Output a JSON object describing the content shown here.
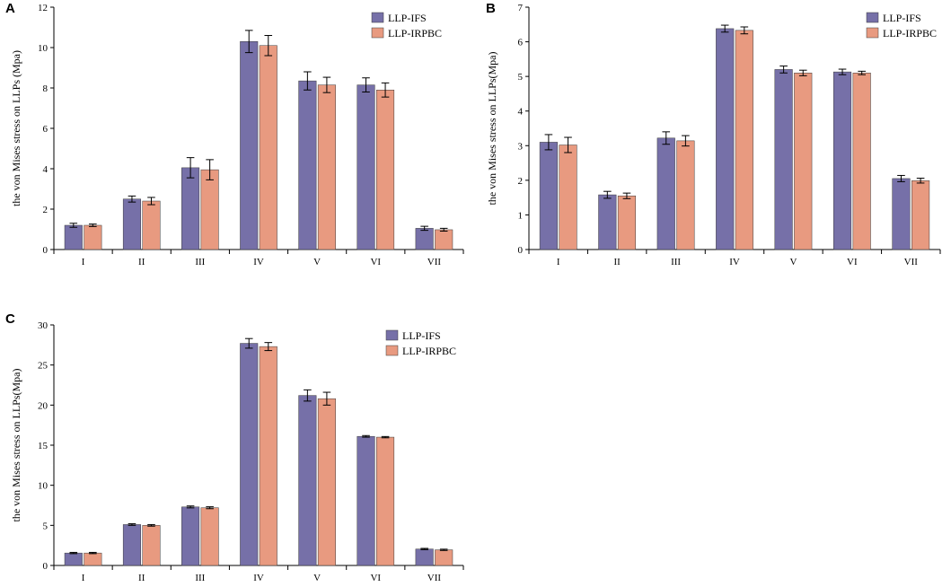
{
  "colors": {
    "ifs": "#7670a8",
    "irpbc": "#e89a80",
    "axis": "#000000",
    "errorbar": "#000000"
  },
  "chart_data": [
    {
      "panel": "A",
      "type": "bar",
      "title": "",
      "xlabel": "",
      "ylabel": "the von Mises stress on LLPs (Mpa)",
      "ylim": [
        0,
        12
      ],
      "yticks": [
        0,
        2,
        4,
        6,
        8,
        10,
        12
      ],
      "ytick_labels": [
        "0",
        "2",
        "4",
        "6",
        "8",
        "10",
        "12"
      ],
      "categories": [
        "I",
        "II",
        "III",
        "IV",
        "V",
        "VI",
        "VII"
      ],
      "legend_position": "top-right",
      "series": [
        {
          "name": "LLP-IFS",
          "values": [
            1.2,
            2.5,
            4.05,
            10.3,
            8.35,
            8.15,
            1.05
          ],
          "errors": [
            0.1,
            0.15,
            0.5,
            0.55,
            0.45,
            0.35,
            0.1
          ]
        },
        {
          "name": "LLP-IRPBC",
          "values": [
            1.2,
            2.4,
            3.95,
            10.1,
            8.15,
            7.9,
            0.98
          ],
          "errors": [
            0.06,
            0.18,
            0.5,
            0.5,
            0.38,
            0.35,
            0.07
          ]
        }
      ]
    },
    {
      "panel": "B",
      "type": "bar",
      "title": "",
      "xlabel": "",
      "ylabel": "the von Mises stress on LLPs(Mpa)",
      "ylim": [
        0,
        7
      ],
      "yticks": [
        0,
        1,
        2,
        3,
        4,
        5,
        6,
        7
      ],
      "ytick_labels": [
        "0",
        "1",
        "2",
        "3",
        "4",
        "5",
        "6",
        "7"
      ],
      "categories": [
        "I",
        "II",
        "III",
        "IV",
        "V",
        "VI",
        "VII"
      ],
      "legend_position": "top-right",
      "series": [
        {
          "name": "LLP-IFS",
          "values": [
            3.1,
            1.58,
            3.22,
            6.38,
            5.2,
            5.13,
            2.05
          ],
          "errors": [
            0.22,
            0.1,
            0.18,
            0.1,
            0.1,
            0.08,
            0.09
          ]
        },
        {
          "name": "LLP-IRPBC",
          "values": [
            3.02,
            1.55,
            3.14,
            6.33,
            5.1,
            5.1,
            1.99
          ],
          "errors": [
            0.22,
            0.08,
            0.15,
            0.1,
            0.08,
            0.05,
            0.07
          ]
        }
      ]
    },
    {
      "panel": "C",
      "type": "bar",
      "title": "",
      "xlabel": "",
      "ylabel": "the von Mises stress on LLPs(Mpa)",
      "ylim": [
        0,
        30
      ],
      "yticks": [
        0,
        5,
        10,
        15,
        20,
        25,
        30
      ],
      "ytick_labels": [
        "0",
        "5",
        "10",
        "15",
        "20",
        "25",
        "30"
      ],
      "categories": [
        "I",
        "II",
        "III",
        "IV",
        "V",
        "VI",
        "VII"
      ],
      "legend_position": "top-right",
      "series": [
        {
          "name": "LLP-IFS",
          "values": [
            1.55,
            5.1,
            7.3,
            27.7,
            21.2,
            16.1,
            2.05
          ],
          "errors": [
            0.08,
            0.1,
            0.12,
            0.6,
            0.7,
            0.1,
            0.08
          ]
        },
        {
          "name": "LLP-IRPBC",
          "values": [
            1.55,
            5.0,
            7.2,
            27.3,
            20.8,
            16.0,
            1.95
          ],
          "errors": [
            0.08,
            0.1,
            0.12,
            0.5,
            0.8,
            0.08,
            0.08
          ]
        }
      ]
    }
  ]
}
